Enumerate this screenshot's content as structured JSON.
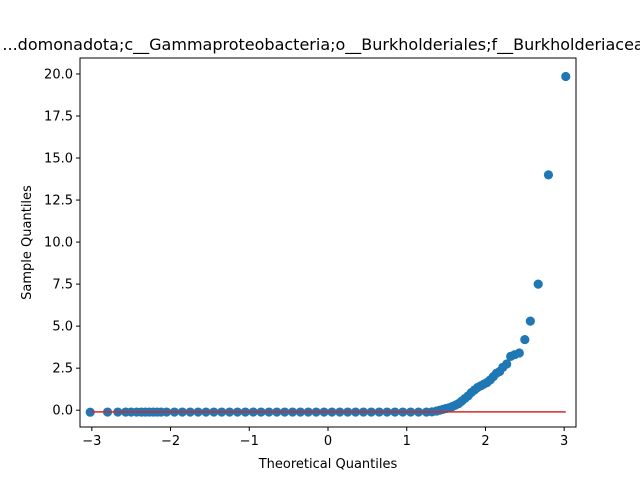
{
  "chart_data": {
    "type": "scatter",
    "title": "...domonadota;c__Gammaproteobacteria;o__Burkholderiales;f__Burkholderiaceae",
    "xlabel": "Theoretical Quantiles",
    "ylabel": "Sample Quantiles",
    "xlim": [
      -3.15,
      3.15
    ],
    "ylim": [
      -1.0,
      20.95
    ],
    "xticks": [
      -3,
      -2,
      -1,
      0,
      1,
      2,
      3
    ],
    "xtick_labels": [
      "−3",
      "−2",
      "−1",
      "0",
      "1",
      "2",
      "3"
    ],
    "yticks": [
      0.0,
      2.5,
      5.0,
      7.5,
      10.0,
      12.5,
      15.0,
      17.5,
      20.0
    ],
    "ytick_labels": [
      "0.0",
      "2.5",
      "5.0",
      "7.5",
      "10.0",
      "12.5",
      "15.0",
      "17.5",
      "20.0"
    ],
    "point_color": "#1f77b4",
    "line_color": "#d62728",
    "reference_line": {
      "x": [
        -3.02,
        3.02
      ],
      "y": [
        -0.1,
        -0.1
      ]
    },
    "series": [
      {
        "x": [
          -3.02,
          -2.8,
          -2.67,
          -2.57,
          -2.5,
          -2.43,
          -2.37,
          -2.32,
          -2.27,
          -2.22,
          -2.17,
          -2.12,
          -2.05,
          -1.95,
          -1.85,
          -1.75,
          -1.65,
          -1.55,
          -1.45,
          -1.35,
          -1.25,
          -1.15,
          -1.05,
          -0.95,
          -0.85,
          -0.75,
          -0.65,
          -0.55,
          -0.45,
          -0.35,
          -0.25,
          -0.15,
          -0.05,
          0.05,
          0.15,
          0.25,
          0.35,
          0.45,
          0.55,
          0.65,
          0.75,
          0.85,
          0.95,
          1.05,
          1.15,
          1.25,
          1.32,
          1.38,
          1.42,
          1.46,
          1.5,
          1.54,
          1.58,
          1.62,
          1.66,
          1.7,
          1.74,
          1.78,
          1.82,
          1.86,
          1.9,
          1.94,
          1.98,
          2.02,
          2.06,
          2.1,
          2.14,
          2.18,
          2.22,
          2.27,
          2.32,
          2.37,
          2.43,
          2.5,
          2.57,
          2.67,
          2.8,
          3.02
        ],
        "y": [
          -0.12,
          -0.11,
          -0.11,
          -0.11,
          -0.11,
          -0.11,
          -0.11,
          -0.11,
          -0.11,
          -0.11,
          -0.11,
          -0.11,
          -0.11,
          -0.11,
          -0.11,
          -0.11,
          -0.11,
          -0.11,
          -0.11,
          -0.11,
          -0.11,
          -0.11,
          -0.11,
          -0.11,
          -0.11,
          -0.11,
          -0.11,
          -0.11,
          -0.11,
          -0.11,
          -0.11,
          -0.11,
          -0.11,
          -0.11,
          -0.11,
          -0.11,
          -0.11,
          -0.11,
          -0.11,
          -0.11,
          -0.11,
          -0.11,
          -0.11,
          -0.11,
          -0.11,
          -0.11,
          -0.1,
          -0.05,
          0.0,
          0.05,
          0.1,
          0.15,
          0.22,
          0.3,
          0.4,
          0.55,
          0.7,
          0.85,
          1.05,
          1.2,
          1.35,
          1.45,
          1.55,
          1.65,
          1.8,
          2.0,
          2.2,
          2.3,
          2.55,
          2.75,
          3.2,
          3.3,
          3.4,
          4.2,
          5.3,
          7.5,
          14.0,
          19.85
        ]
      }
    ]
  }
}
